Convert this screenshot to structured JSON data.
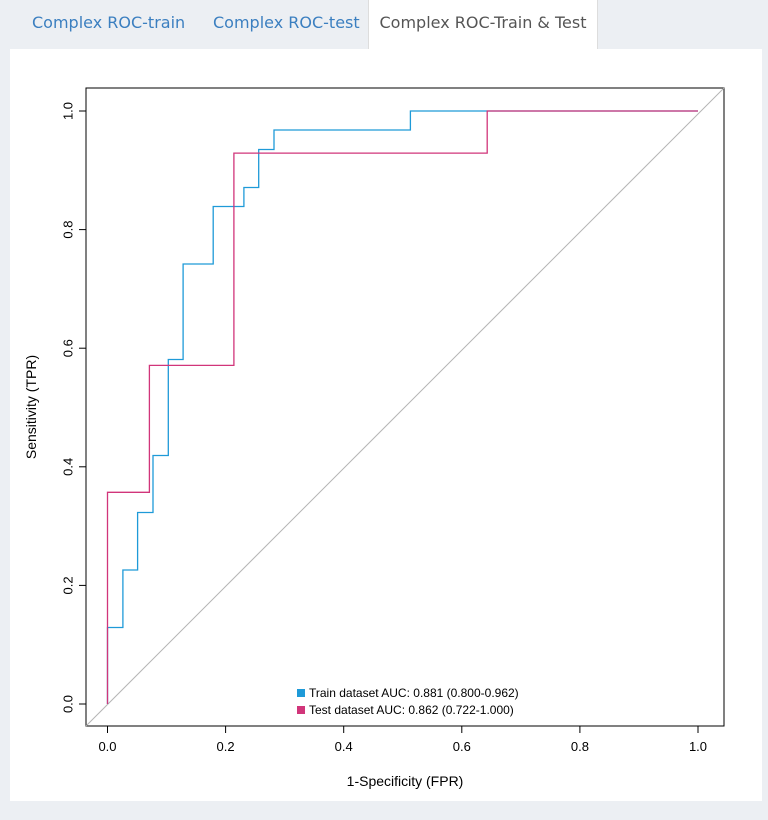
{
  "tabs": [
    {
      "label": "Complex ROC-train",
      "active": false
    },
    {
      "label": "Complex ROC-test",
      "active": false
    },
    {
      "label": "Complex ROC-Train & Test",
      "active": true
    }
  ],
  "chart_data": {
    "type": "line",
    "xlabel": "1-Specificity (FPR)",
    "ylabel": "Sensitivity (TPR)",
    "xlim": [
      0,
      1
    ],
    "ylim": [
      0,
      1
    ],
    "x_ticks": [
      "0.0",
      "0.2",
      "0.4",
      "0.6",
      "0.8",
      "1.0"
    ],
    "y_ticks": [
      "0.0",
      "0.2",
      "0.4",
      "0.6",
      "0.8",
      "1.0"
    ],
    "diagonal": true,
    "legend_position": "bottom-center",
    "series": [
      {
        "name": "Train dataset AUC: 0.881 (0.800-0.962)",
        "color": "#1e9ad8",
        "x": [
          0,
          0,
          0.026,
          0.026,
          0.051,
          0.051,
          0.077,
          0.077,
          0.103,
          0.103,
          0.128,
          0.128,
          0.179,
          0.179,
          0.231,
          0.231,
          0.256,
          0.256,
          0.282,
          0.282,
          0.513,
          0.513,
          1
        ],
        "y": [
          0,
          0.129,
          0.129,
          0.226,
          0.226,
          0.323,
          0.323,
          0.419,
          0.419,
          0.581,
          0.581,
          0.742,
          0.742,
          0.839,
          0.839,
          0.871,
          0.871,
          0.935,
          0.935,
          0.968,
          0.968,
          1,
          1
        ]
      },
      {
        "name": "Test dataset AUC: 0.862 (0.722-1.000)",
        "color": "#d1357a",
        "x": [
          0,
          0,
          0.071,
          0.071,
          0.214,
          0.214,
          0.643,
          0.643,
          1
        ],
        "y": [
          0,
          0.357,
          0.357,
          0.571,
          0.571,
          0.929,
          0.929,
          1,
          1
        ]
      }
    ]
  }
}
